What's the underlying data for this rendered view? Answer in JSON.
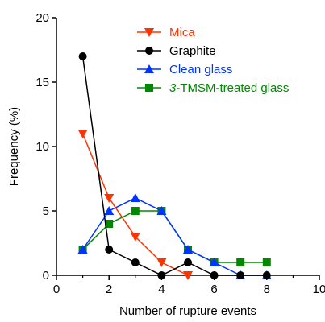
{
  "chart_data": {
    "type": "line",
    "title": "",
    "xlabel": "Number of rupture events",
    "ylabel": "Frequency (%)",
    "xlim": [
      0,
      10
    ],
    "ylim": [
      0,
      20
    ],
    "x_ticks": [
      0,
      2,
      4,
      6,
      8,
      10
    ],
    "y_ticks": [
      0,
      5,
      10,
      15,
      20
    ],
    "grid": false,
    "legend_position": "top-right",
    "series": [
      {
        "name": "Mica",
        "color": "#ff3300",
        "marker": "triangle-down",
        "italic_prefix": "",
        "label_rest": "Mica",
        "x": [
          1,
          2,
          3,
          4,
          5
        ],
        "y": [
          11,
          6,
          3,
          1,
          0
        ]
      },
      {
        "name": "Graphite",
        "color": "#000000",
        "marker": "circle",
        "italic_prefix": "",
        "label_rest": "Graphite",
        "x": [
          1,
          2,
          3,
          4,
          5,
          6,
          7,
          8
        ],
        "y": [
          17,
          2,
          1,
          0,
          1,
          0,
          0,
          0
        ]
      },
      {
        "name": "Clean glass",
        "color": "#0033ff",
        "marker": "triangle-up",
        "italic_prefix": "",
        "label_rest": "Clean glass",
        "x": [
          1,
          2,
          3,
          4,
          5,
          6,
          7,
          8
        ],
        "y": [
          2,
          5,
          6,
          5,
          2,
          1,
          0,
          0
        ]
      },
      {
        "name": "3-TMSM-treated glass",
        "color": "#008800",
        "marker": "square",
        "italic_prefix": "3",
        "label_rest": "-TMSM-treated glass",
        "x": [
          1,
          2,
          3,
          4,
          5,
          6,
          7,
          8
        ],
        "y": [
          2,
          4,
          5,
          5,
          2,
          1,
          1,
          1
        ]
      }
    ]
  }
}
